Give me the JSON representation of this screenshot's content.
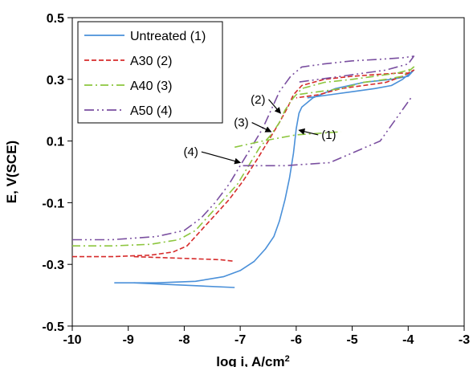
{
  "chart_data": {
    "type": "line",
    "xlabel": "log i, A/cm",
    "xlabel_superscript": "2",
    "ylabel": "E, V(SCE)",
    "xlim": [
      -10,
      -3
    ],
    "ylim": [
      -0.5,
      0.5
    ],
    "x_ticks": [
      "-10",
      "-9",
      "-8",
      "-7",
      "-6",
      "-5",
      "-4",
      "-3"
    ],
    "y_ticks": [
      "-0.5",
      "-0.3",
      "-0.1",
      "0.1",
      "0.3",
      "0.5"
    ],
    "grid": false,
    "legend_position": "top-left",
    "series": [
      {
        "name": "Untreated (1)",
        "color": "#4a90d9",
        "dash": "solid",
        "x": [
          -9.25,
          -8.5,
          -7.8,
          -7.3,
          -7.0,
          -6.75,
          -6.55,
          -6.4,
          -6.3,
          -6.2,
          -6.12,
          -6.05,
          -6.0,
          -5.95,
          -5.9,
          -5.7,
          -5.3,
          -4.8,
          -4.3,
          -4.0,
          -3.9,
          -4.1,
          -4.3,
          -4.6,
          -5.0,
          -5.4,
          -5.8
        ],
        "y": [
          -0.36,
          -0.36,
          -0.355,
          -0.34,
          -0.32,
          -0.29,
          -0.25,
          -0.21,
          -0.16,
          -0.09,
          -0.02,
          0.06,
          0.14,
          0.19,
          0.21,
          0.24,
          0.27,
          0.29,
          0.3,
          0.31,
          0.33,
          0.3,
          0.28,
          0.27,
          0.26,
          0.25,
          0.24
        ]
      },
      {
        "name": "A30 (2)",
        "color": "#d62b2b",
        "dash": "6,3",
        "x": [
          -10.0,
          -9.3,
          -8.6,
          -8.2,
          -7.95,
          -7.7,
          -7.45,
          -7.2,
          -6.95,
          -6.7,
          -6.5,
          -6.3,
          -6.15,
          -6.05,
          -5.9,
          -5.5,
          -5.0,
          -4.6,
          -4.2,
          -4.0,
          -3.9,
          -4.1,
          -4.4,
          -4.8,
          -5.2,
          -5.6,
          -6.0
        ],
        "y": [
          -0.275,
          -0.275,
          -0.27,
          -0.26,
          -0.24,
          -0.19,
          -0.14,
          -0.09,
          -0.03,
          0.04,
          0.1,
          0.16,
          0.21,
          0.25,
          0.28,
          0.3,
          0.31,
          0.315,
          0.32,
          0.32,
          0.33,
          0.31,
          0.29,
          0.28,
          0.27,
          0.25,
          0.24
        ]
      },
      {
        "name": "A40 (3)",
        "color": "#8dc63f",
        "dash": "10,4,2,4",
        "x": [
          -10.0,
          -9.3,
          -8.6,
          -8.1,
          -7.8,
          -7.55,
          -7.3,
          -7.05,
          -6.85,
          -6.65,
          -6.45,
          -6.3,
          -6.2,
          -6.05,
          -5.9,
          -5.5,
          -5.0,
          -4.6,
          -4.2,
          -4.0,
          -3.9,
          -4.1,
          -4.4,
          -4.8,
          -5.2,
          -5.6,
          -6.0
        ],
        "y": [
          -0.24,
          -0.24,
          -0.235,
          -0.22,
          -0.19,
          -0.14,
          -0.09,
          -0.04,
          0.02,
          0.08,
          0.12,
          0.16,
          0.2,
          0.24,
          0.27,
          0.29,
          0.3,
          0.31,
          0.32,
          0.33,
          0.34,
          0.31,
          0.3,
          0.29,
          0.27,
          0.26,
          0.25
        ]
      },
      {
        "name": "A50 (4)",
        "color": "#7a4fa0",
        "dash": "12,4,2,4,2,4",
        "x": [
          -10.0,
          -9.3,
          -8.5,
          -8.0,
          -7.7,
          -7.45,
          -7.2,
          -7.0,
          -6.8,
          -6.6,
          -6.45,
          -6.3,
          -6.1,
          -5.9,
          -5.5,
          -5.0,
          -4.5,
          -4.1,
          -3.9,
          -4.0,
          -4.4,
          -4.8,
          -5.2,
          -5.6,
          -6.0
        ],
        "y": [
          -0.22,
          -0.22,
          -0.21,
          -0.19,
          -0.15,
          -0.1,
          -0.04,
          0.02,
          0.08,
          0.14,
          0.2,
          0.26,
          0.31,
          0.34,
          0.35,
          0.36,
          0.365,
          0.37,
          0.375,
          0.35,
          0.33,
          0.32,
          0.31,
          0.3,
          0.29
        ]
      },
      {
        "name": "",
        "color": "#4a90d9",
        "dash": "solid",
        "x": [
          -8.9,
          -8.3,
          -7.7,
          -7.1
        ],
        "y": [
          -0.36,
          -0.365,
          -0.37,
          -0.375
        ]
      },
      {
        "name": "",
        "color": "#d62b2b",
        "dash": "6,3",
        "x": [
          -8.9,
          -8.1,
          -7.35,
          -7.1
        ],
        "y": [
          -0.275,
          -0.28,
          -0.285,
          -0.29
        ]
      },
      {
        "name": "",
        "color": "#7a4fa0",
        "dash": "12,4,2,4,2,4",
        "x": [
          -6.95,
          -6.2,
          -5.4,
          -4.5,
          -3.95
        ],
        "y": [
          0.02,
          0.02,
          0.03,
          0.1,
          0.24
        ]
      },
      {
        "name": "",
        "color": "#8dc63f",
        "dash": "10,4,2,4",
        "x": [
          -7.1,
          -6.6,
          -6.0,
          -5.2
        ],
        "y": [
          0.08,
          0.1,
          0.12,
          0.13
        ]
      }
    ],
    "annotations": [
      {
        "label": "(2)",
        "x": -6.55,
        "y": 0.235,
        "tx": -6.28,
        "ty": 0.19
      },
      {
        "label": "(3)",
        "x": -6.85,
        "y": 0.16,
        "tx": -6.45,
        "ty": 0.13
      },
      {
        "label": "(1)",
        "x": -5.55,
        "y": 0.12,
        "tx": -5.95,
        "ty": 0.135
      },
      {
        "label": "(4)",
        "x": -7.75,
        "y": 0.065,
        "tx": -7.0,
        "ty": 0.03
      }
    ]
  }
}
